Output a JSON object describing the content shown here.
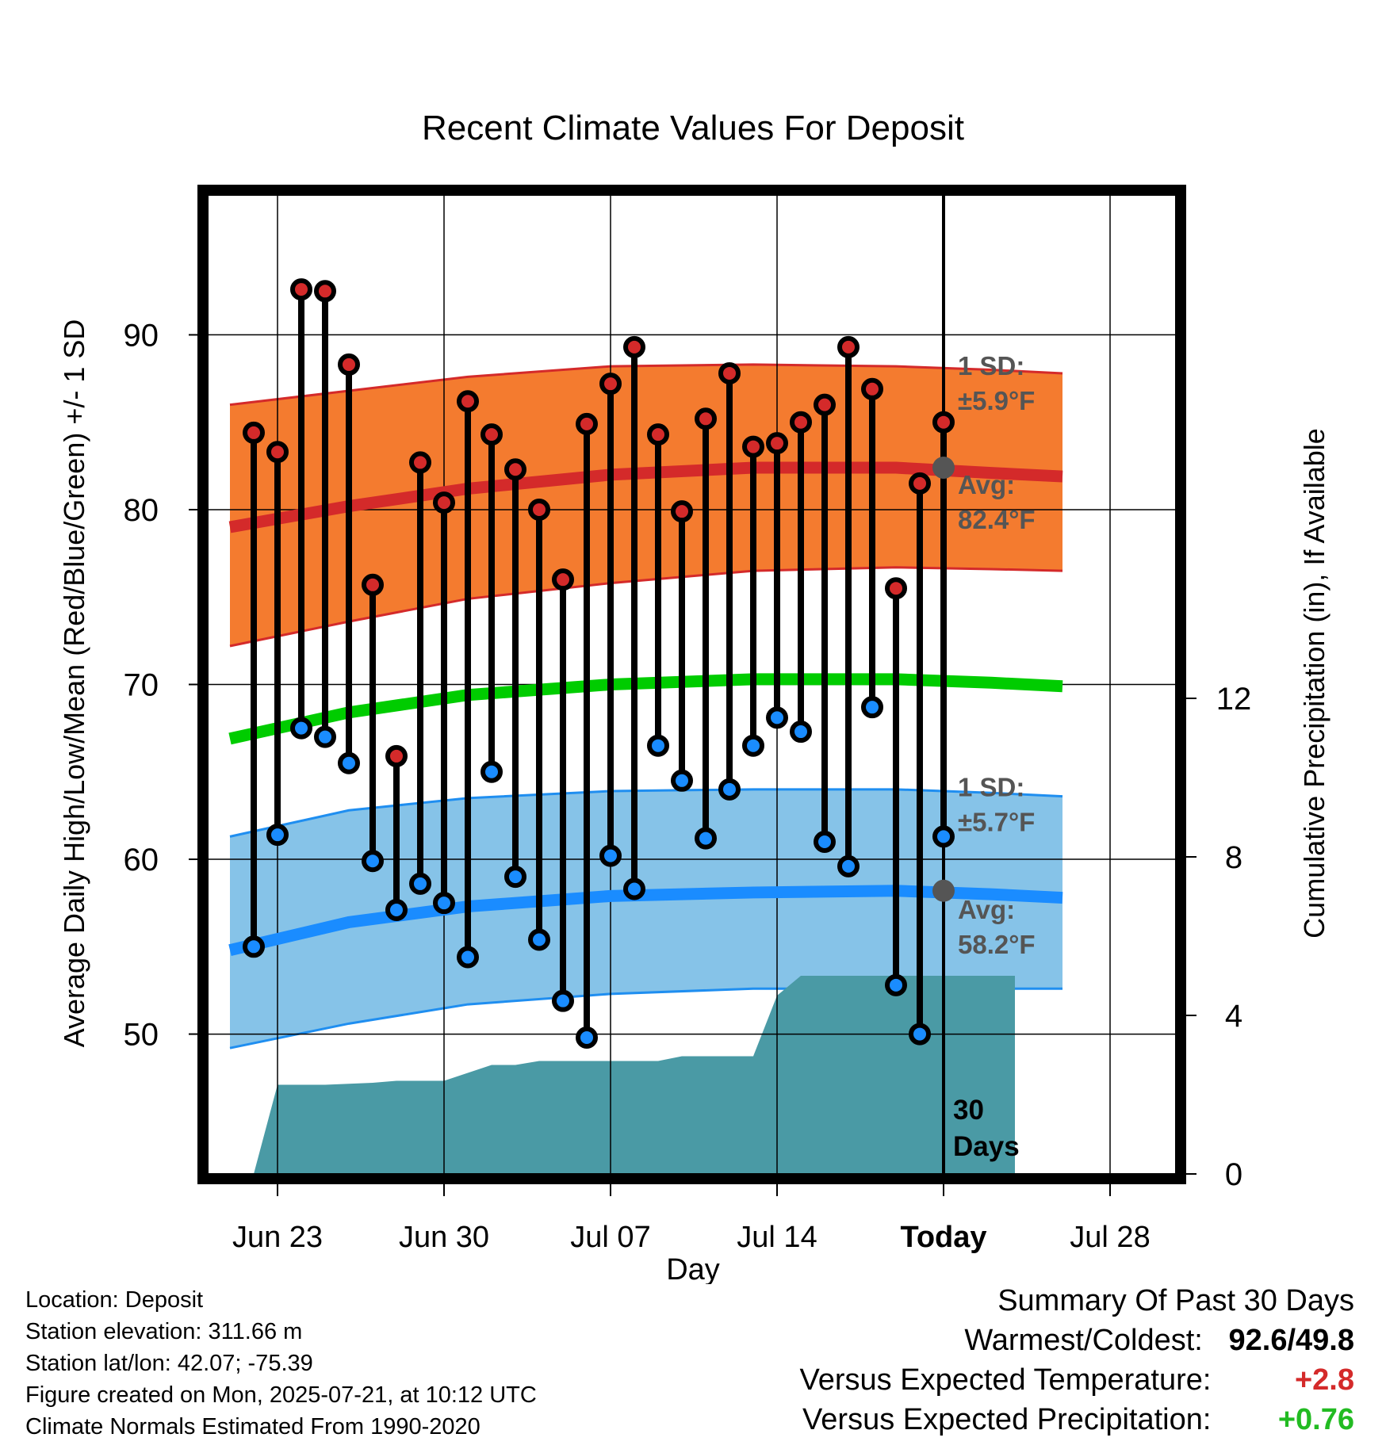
{
  "chart_data": {
    "type": "line",
    "title": "Recent Climate Values For Deposit",
    "xlabel": "Day",
    "ylabel": "Average Daily High/Low/Mean (Red/Blue/Green) +/- 1 SD",
    "y2label": "Cumulative Precipitation (in), If Available",
    "x_tick_labels": [
      "Jun 23",
      "Jun 30",
      "Jul 07",
      "Jul 14",
      "Today",
      "Jul 28"
    ],
    "y_ticks": [
      50,
      60,
      70,
      80,
      90
    ],
    "y2_ticks": [
      0,
      4,
      8,
      12
    ],
    "ylim": [
      42,
      98
    ],
    "y2lim": [
      0,
      24.7
    ],
    "grid": true,
    "today_marker_label": "30\nDays",
    "normals_x": [
      -2,
      3,
      8,
      14,
      20,
      26,
      30,
      33
    ],
    "normal_high": [
      79.0,
      80.2,
      81.2,
      82.0,
      82.4,
      82.4,
      82.1,
      81.9
    ],
    "normal_high_sd_upper": [
      86.0,
      86.8,
      87.6,
      88.2,
      88.3,
      88.2,
      88.0,
      87.8
    ],
    "normal_high_sd_lower": [
      72.2,
      73.6,
      74.9,
      75.8,
      76.5,
      76.7,
      76.6,
      76.5
    ],
    "normal_mean": [
      66.9,
      68.4,
      69.4,
      70.0,
      70.3,
      70.3,
      70.1,
      69.9
    ],
    "normal_low": [
      54.8,
      56.4,
      57.3,
      57.9,
      58.1,
      58.2,
      58.0,
      57.8
    ],
    "normal_low_sd_upper": [
      61.3,
      62.8,
      63.5,
      63.9,
      64.0,
      64.0,
      63.8,
      63.6
    ],
    "normal_low_sd_lower": [
      49.2,
      50.6,
      51.7,
      52.3,
      52.6,
      52.6,
      52.6,
      52.6
    ],
    "sd_high_label": "1 SD:\n±5.9°F",
    "avg_high_label": "Avg:\n82.4°F",
    "sd_low_label": "1 SD:\n±5.7°F",
    "avg_low_label": "Avg:\n58.2°F",
    "avg_high_value": 82.4,
    "avg_low_value": 58.2,
    "days": [
      -1,
      0,
      1,
      2,
      3,
      4,
      5,
      6,
      7,
      8,
      9,
      10,
      11,
      12,
      13,
      14,
      15,
      16,
      17,
      18,
      19,
      20,
      21,
      22,
      23,
      24,
      25,
      26,
      27,
      28
    ],
    "daily_high": [
      84.4,
      83.3,
      92.6,
      92.5,
      88.3,
      75.7,
      65.9,
      82.7,
      80.4,
      86.2,
      84.3,
      82.3,
      80.0,
      76.0,
      84.9,
      87.2,
      89.3,
      84.3,
      79.9,
      85.2,
      87.8,
      83.6,
      83.8,
      85.0,
      86.0,
      89.3,
      86.9,
      75.5,
      81.5,
      85.0
    ],
    "daily_low": [
      55.0,
      61.4,
      67.5,
      67.0,
      65.5,
      59.9,
      57.1,
      58.6,
      57.5,
      54.4,
      65.0,
      59.0,
      55.4,
      51.9,
      49.8,
      60.2,
      58.3,
      66.5,
      64.5,
      61.2,
      64.0,
      66.5,
      68.1,
      67.3,
      61.0,
      59.6,
      68.7,
      52.8,
      50.0,
      61.3
    ],
    "precip_x": [
      -1,
      0,
      2,
      4,
      5,
      7,
      9,
      10,
      11,
      12,
      14,
      16,
      17,
      18,
      19,
      20,
      21,
      22,
      23,
      28,
      31
    ],
    "cumulative_precip": [
      0,
      2.25,
      2.25,
      2.3,
      2.35,
      2.35,
      2.75,
      2.75,
      2.85,
      2.85,
      2.85,
      2.85,
      2.97,
      2.97,
      2.97,
      2.97,
      4.5,
      5.0,
      5.0,
      5.0,
      5.0
    ],
    "colors": {
      "high": "#d42a2a",
      "high_band": "#f47b2f",
      "mean": "#00cc00",
      "low": "#1a8cff",
      "low_band": "#86c3e8",
      "low_band_edge": "#1f8ef0",
      "precip": "#4a9aa5",
      "annotation": "#555555",
      "warm": "#d42a2a",
      "wet": "#22bb22"
    }
  },
  "info": {
    "location": "Location: Deposit",
    "elevation": "Station elevation: 311.66 m",
    "latlon": "Station lat/lon: 42.07; -75.39",
    "created": "Figure created on Mon, 2025-07-21, at 10:12 UTC",
    "normals": "Climate Normals Estimated From 1990-2020"
  },
  "summary": {
    "heading": "Summary Of Past 30 Days",
    "warmest_coldest_label": "Warmest/Coldest:",
    "warmest": "92.6",
    "separator": "/",
    "coldest": "49.8",
    "temp_label": "Versus Expected Temperature:",
    "temp_value": "+2.8",
    "precip_label": "Versus Expected Precipitation:",
    "precip_value": "+0.76"
  }
}
